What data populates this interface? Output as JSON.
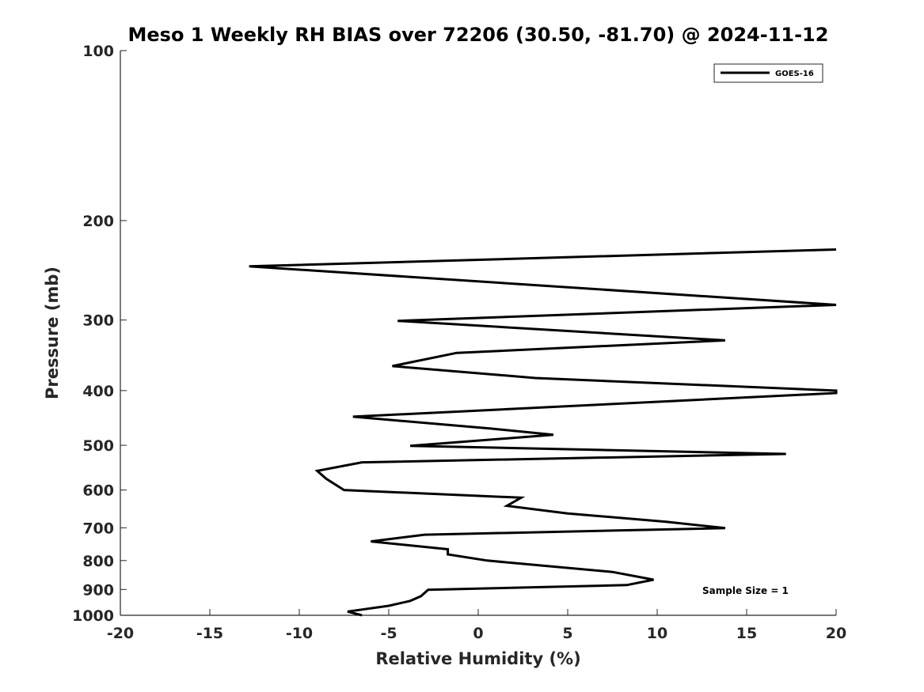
{
  "chart_data": {
    "type": "line",
    "title": "Meso 1 Weekly RH BIAS over 72206 (30.50, -81.70) @ 2024-11-12",
    "xlabel": "Relative Humidity (%)",
    "ylabel": "Pressure (mb)",
    "xlim": [
      -20,
      20
    ],
    "ylim": [
      100,
      1000
    ],
    "y_scale": "log",
    "y_reversed": true,
    "x_ticks": [
      "-20",
      "-15",
      "-10",
      "-5",
      "0",
      "5",
      "10",
      "15",
      "20"
    ],
    "y_ticks": [
      "100",
      "200",
      "300",
      "400",
      "500",
      "600",
      "700",
      "800",
      "900",
      "1000"
    ],
    "grid": false,
    "legend_position": "top-right",
    "annotation": "Sample Size = 1",
    "series": [
      {
        "name": "GOES-16",
        "color": "#000000",
        "points": [
          {
            "x": 20.0,
            "y": 225
          },
          {
            "x": -12.8,
            "y": 241
          },
          {
            "x": 20.0,
            "y": 282
          },
          {
            "x": -4.5,
            "y": 301
          },
          {
            "x": 13.8,
            "y": 326
          },
          {
            "x": -1.2,
            "y": 343
          },
          {
            "x": -4.8,
            "y": 362
          },
          {
            "x": 3.2,
            "y": 380
          },
          {
            "x": 20.0,
            "y": 400
          },
          {
            "x": 20.0,
            "y": 404
          },
          {
            "x": -7.0,
            "y": 445
          },
          {
            "x": 0.7,
            "y": 467
          },
          {
            "x": 4.2,
            "y": 479
          },
          {
            "x": -3.8,
            "y": 501
          },
          {
            "x": 17.2,
            "y": 518
          },
          {
            "x": -6.5,
            "y": 536
          },
          {
            "x": -9.0,
            "y": 555
          },
          {
            "x": -8.5,
            "y": 573
          },
          {
            "x": -7.5,
            "y": 600
          },
          {
            "x": 2.4,
            "y": 619
          },
          {
            "x": 1.6,
            "y": 640
          },
          {
            "x": 5.0,
            "y": 660
          },
          {
            "x": 10.5,
            "y": 683
          },
          {
            "x": 13.8,
            "y": 701
          },
          {
            "x": -3.0,
            "y": 720
          },
          {
            "x": -6.0,
            "y": 740
          },
          {
            "x": -1.7,
            "y": 764
          },
          {
            "x": -1.7,
            "y": 780
          },
          {
            "x": 0.5,
            "y": 800
          },
          {
            "x": 7.5,
            "y": 838
          },
          {
            "x": 9.8,
            "y": 865
          },
          {
            "x": 8.3,
            "y": 884
          },
          {
            "x": -2.8,
            "y": 901
          },
          {
            "x": -3.2,
            "y": 925
          },
          {
            "x": -3.8,
            "y": 943
          },
          {
            "x": -5.0,
            "y": 962
          },
          {
            "x": -7.3,
            "y": 985
          },
          {
            "x": -6.5,
            "y": 1000
          }
        ]
      }
    ]
  }
}
